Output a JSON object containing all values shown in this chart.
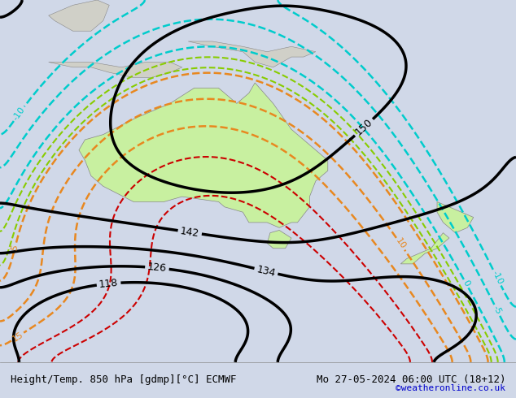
{
  "title_left": "Height/Temp. 850 hPa [gdmp][°C] ECMWF",
  "title_right": "Mo 27-05-2024 06:00 UTC (18+12)",
  "credit": "©weatheronline.co.uk",
  "bg_color": "#d0d8e8",
  "land_color_australia": "#c8f0a0",
  "land_color_nz": "#c8f0a0",
  "land_color_other": "#d8d8d8",
  "ocean_color": "#c8d8e8",
  "fig_width": 6.34,
  "fig_height": 4.9,
  "dpi": 100,
  "extent": [
    100,
    185,
    -65,
    5
  ],
  "height_contour_color": "#000000",
  "height_contour_values": [
    118,
    126,
    134,
    142,
    150
  ],
  "temp_orange_color": "#e88820",
  "temp_green_color": "#88cc00",
  "temp_cyan_color": "#00cccc",
  "temp_red_color": "#cc0000"
}
